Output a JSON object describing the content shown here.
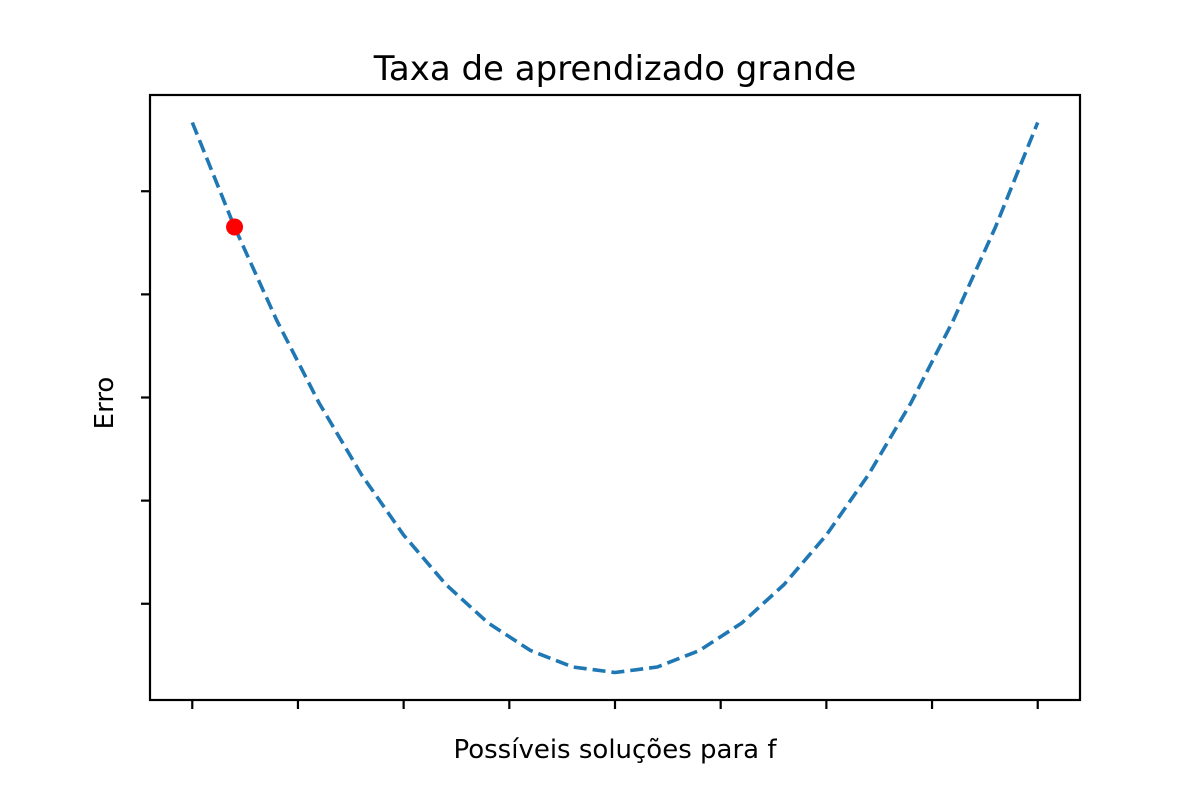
{
  "chart_data": {
    "type": "line",
    "title": "Taxa de aprendizado grande",
    "xlabel": "Possíveis soluções para f",
    "ylabel": "Erro",
    "xlim": [
      -4.4,
      4.4
    ],
    "ylim": [
      -0.8,
      16.8
    ],
    "x_ticks": [
      -4,
      -3,
      -2,
      -1,
      0,
      1,
      2,
      3,
      4
    ],
    "y_ticks": [
      2,
      5,
      8,
      11,
      14
    ],
    "tick_labels_shown": false,
    "grid": false,
    "series": [
      {
        "style": "dashed",
        "color": "#1f77b4",
        "x": [
          -4,
          -3.6,
          -3.2,
          -2.8,
          -2.4,
          -2,
          -1.6,
          -1.2,
          -0.8,
          -0.4,
          0,
          0.4,
          0.8,
          1.2,
          1.6,
          2,
          2.4,
          2.8,
          3.2,
          3.6,
          4
        ],
        "y": [
          16,
          12.96,
          10.24,
          7.84,
          5.76,
          4,
          2.56,
          1.44,
          0.64,
          0.16,
          0,
          0.16,
          0.64,
          1.44,
          2.56,
          4,
          5.76,
          7.84,
          10.24,
          12.96,
          16
        ]
      }
    ],
    "points": [
      {
        "x": -3.6,
        "y": 12.96,
        "color": "#ff0000"
      }
    ]
  }
}
